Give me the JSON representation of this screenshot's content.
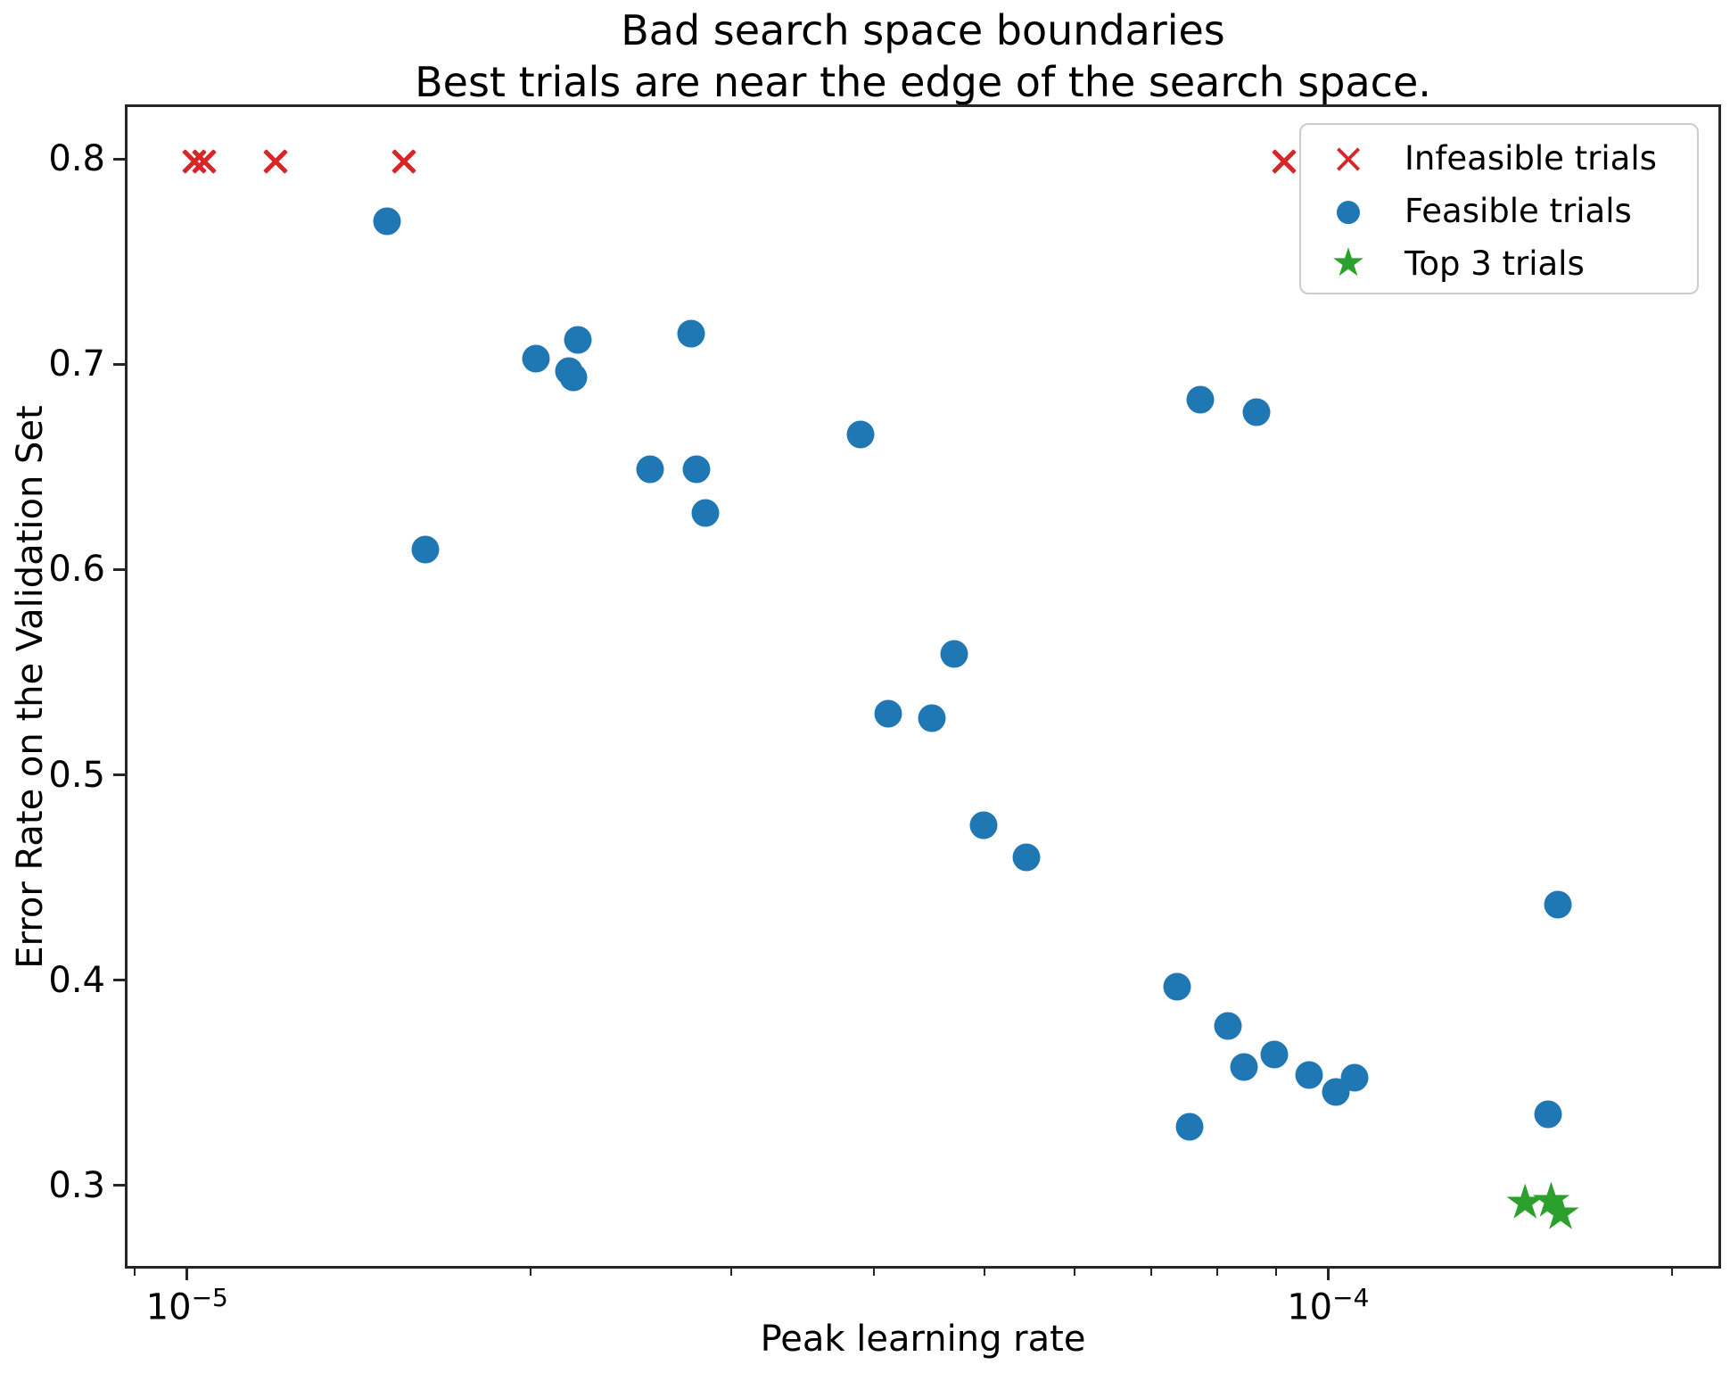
{
  "title": {
    "line1": "Bad search space boundaries",
    "line2": "Best trials are near the edge of the search space."
  },
  "axes": {
    "xlabel": "Peak learning rate",
    "ylabel": "Error Rate on the Validation Set",
    "x_scale": "log",
    "xlim": [
      8.82e-06,
      0.000221
    ],
    "ylim": [
      0.2596,
      0.8265
    ],
    "x_major_ticks": [
      {
        "value": 1e-05,
        "base": "10",
        "exponent": "−5"
      },
      {
        "value": 0.0001,
        "base": "10",
        "exponent": "−4"
      }
    ],
    "x_minor_ticks": [
      9e-06,
      2e-05,
      3e-05,
      4e-05,
      5e-05,
      6e-05,
      7e-05,
      8e-05,
      9e-05,
      0.0002
    ],
    "y_ticks": [
      {
        "value": 0.8,
        "label": "0.8"
      },
      {
        "value": 0.7,
        "label": "0.7"
      },
      {
        "value": 0.6,
        "label": "0.6"
      },
      {
        "value": 0.5,
        "label": "0.5"
      },
      {
        "value": 0.4,
        "label": "0.4"
      },
      {
        "value": 0.3,
        "label": "0.3"
      }
    ],
    "grid": false
  },
  "legend": {
    "position": "upper right",
    "items": [
      {
        "marker": "x",
        "label": "Infeasible trials",
        "color": "#d62728"
      },
      {
        "marker": "circle",
        "label": "Feasible trials",
        "color": "#1f77b4"
      },
      {
        "marker": "star",
        "label": "Top 3 trials",
        "color": "#2ca02c"
      }
    ]
  },
  "chart_data": {
    "type": "scatter",
    "title": "Bad search space boundaries — Best trials are near the edge of the search space.",
    "xlabel": "Peak learning rate",
    "ylabel": "Error Rate on the Validation Set",
    "x_scale": "log",
    "xlim": [
      8.82e-06,
      0.000221
    ],
    "ylim": [
      0.26,
      0.8265
    ],
    "series": [
      {
        "name": "Infeasible trials",
        "marker": "x",
        "color": "#d62728",
        "points": [
          [
            1.01e-05,
            0.8
          ],
          [
            1.03e-05,
            0.8
          ],
          [
            1.19e-05,
            0.8
          ],
          [
            1.54e-05,
            0.8
          ],
          [
            9.1e-05,
            0.8
          ]
        ]
      },
      {
        "name": "Feasible trials",
        "marker": "circle",
        "color": "#1f77b4",
        "points": [
          [
            1.49e-05,
            0.771
          ],
          [
            1.61e-05,
            0.611
          ],
          [
            2.01e-05,
            0.704
          ],
          [
            2.15e-05,
            0.698
          ],
          [
            2.17e-05,
            0.695
          ],
          [
            2.19e-05,
            0.713
          ],
          [
            2.75e-05,
            0.716
          ],
          [
            2.53e-05,
            0.65
          ],
          [
            2.78e-05,
            0.65
          ],
          [
            2.83e-05,
            0.629
          ],
          [
            3.87e-05,
            0.667
          ],
          [
            4.09e-05,
            0.531
          ],
          [
            4.47e-05,
            0.529
          ],
          [
            4.68e-05,
            0.56
          ],
          [
            4.96e-05,
            0.477
          ],
          [
            5.41e-05,
            0.461
          ],
          [
            7.69e-05,
            0.684
          ],
          [
            8.61e-05,
            0.678
          ],
          [
            7.33e-05,
            0.398
          ],
          [
            8.13e-05,
            0.379
          ],
          [
            8.4e-05,
            0.359
          ],
          [
            8.93e-05,
            0.365
          ],
          [
            9.58e-05,
            0.355
          ],
          [
            0.000101,
            0.347
          ],
          [
            0.000105,
            0.354
          ],
          [
            7.52e-05,
            0.33
          ],
          [
            0.000155,
            0.336
          ],
          [
            0.000158,
            0.438
          ]
        ]
      },
      {
        "name": "Top 3 trials",
        "marker": "star",
        "color": "#2ca02c",
        "points": [
          [
            0.000148,
            0.292
          ],
          [
            0.000156,
            0.293
          ],
          [
            0.000159,
            0.287
          ]
        ]
      }
    ]
  }
}
